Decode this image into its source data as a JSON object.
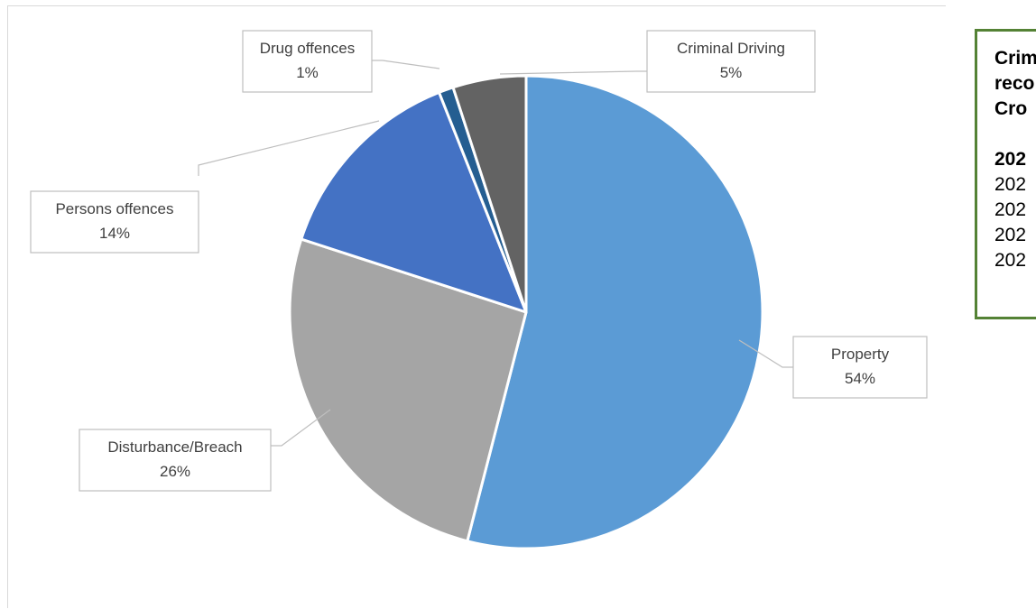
{
  "chart_data": {
    "type": "pie",
    "categories": [
      "Property",
      "Disturbance/Breach",
      "Persons offences",
      "Drug offences",
      "Criminal Driving"
    ],
    "values": [
      54,
      26,
      14,
      1,
      5
    ],
    "value_labels": [
      "54%",
      "26%",
      "14%",
      "1%",
      "5%"
    ],
    "colors": [
      "#5b9bd5",
      "#a5a5a5",
      "#4472c4",
      "#255e91",
      "#636363"
    ],
    "title": "",
    "legend": "none",
    "data_labels": "callouts with category name and percentage"
  },
  "side_panel": {
    "heading_lines": [
      "Crim",
      "reco",
      "Cro"
    ],
    "bold_row": "202",
    "rows": [
      "202",
      "202",
      "202",
      "202"
    ],
    "border_color": "#548235"
  }
}
